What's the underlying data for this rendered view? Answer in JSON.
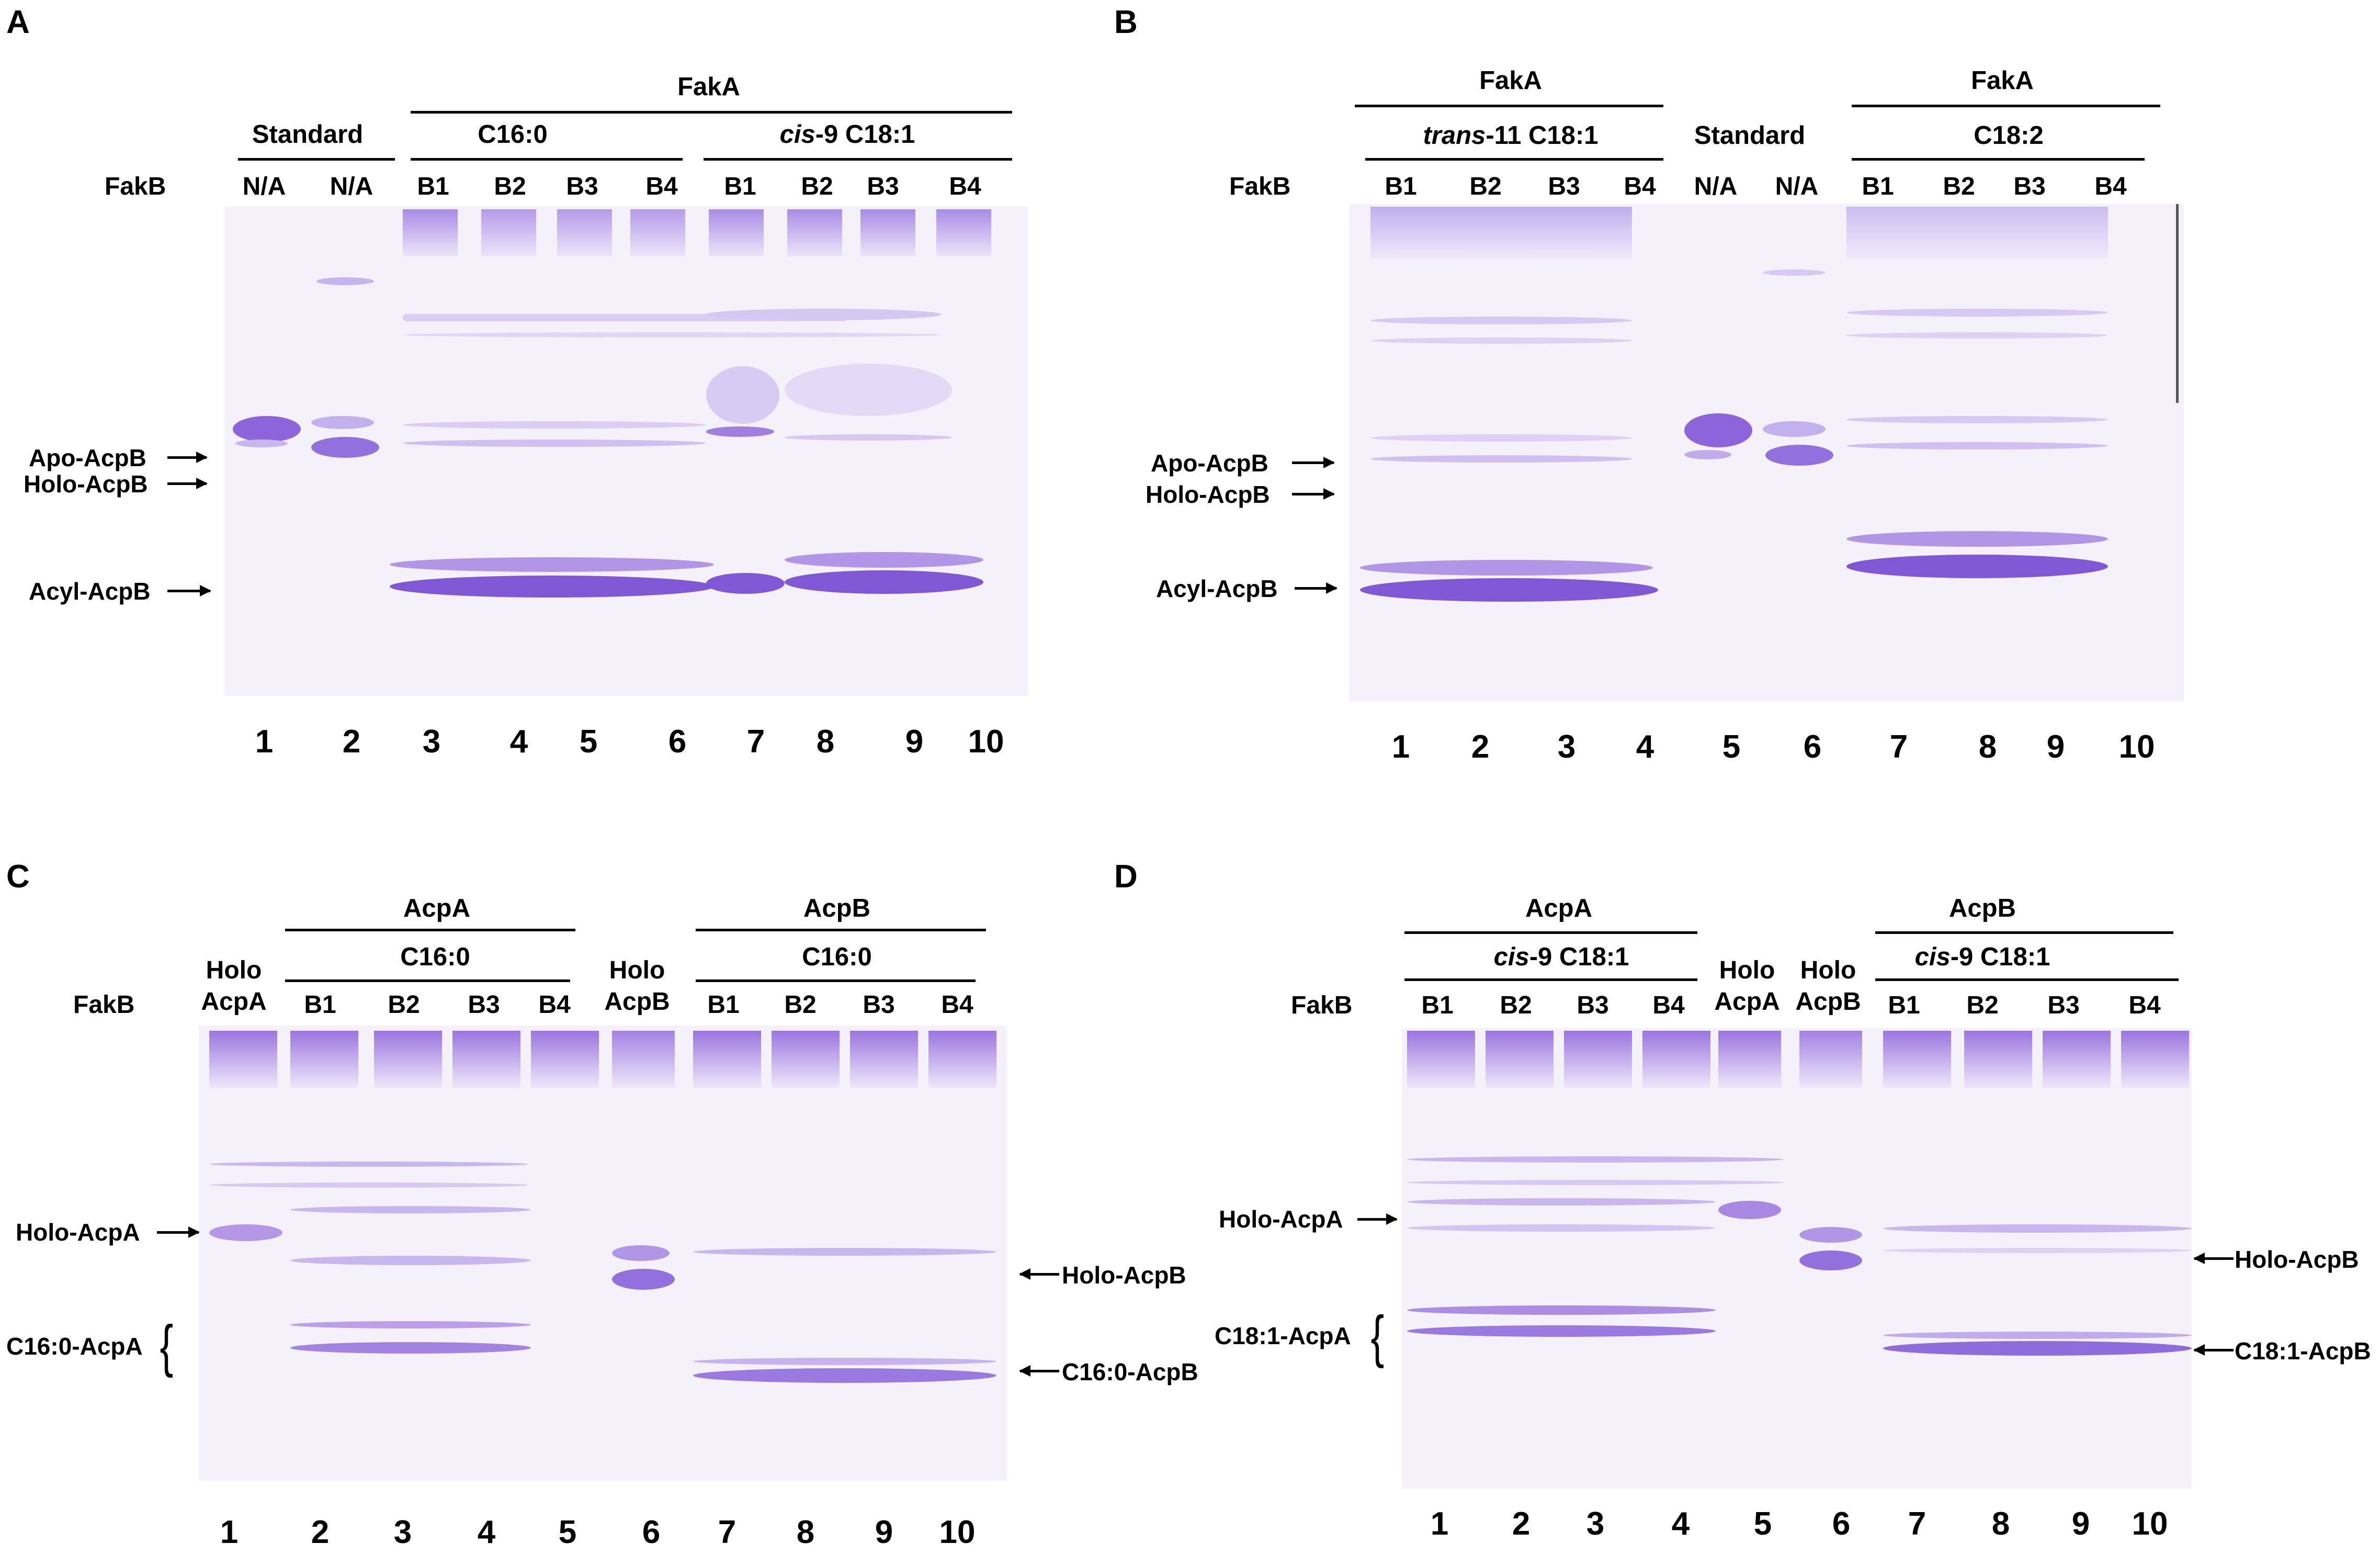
{
  "panels": {
    "A": {
      "letter": "A",
      "row_label": "FakB",
      "group_top": "FakA",
      "group_standard": "Standard",
      "group_c16": "C16:0",
      "group_cis": "cis-9 C18:1",
      "lane_headers": [
        "N/A",
        "N/A",
        "B1",
        "B2",
        "B3",
        "B4",
        "B1",
        "B2",
        "B3",
        "B4"
      ],
      "lane_numbers": [
        "1",
        "2",
        "3",
        "4",
        "5",
        "6",
        "7",
        "8",
        "9",
        "10"
      ],
      "bands": [
        "Apo-AcpB",
        "Holo-AcpB",
        "Acyl-AcpB"
      ]
    },
    "B": {
      "letter": "B",
      "row_label": "FakB",
      "group_top_left": "FakA",
      "group_top_right": "FakA",
      "group_trans": "trans-11 C18:1",
      "group_standard": "Standard",
      "group_c182": "C18:2",
      "lane_headers": [
        "B1",
        "B2",
        "B3",
        "B4",
        "N/A",
        "N/A",
        "B1",
        "B2",
        "B3",
        "B4"
      ],
      "lane_numbers": [
        "1",
        "2",
        "3",
        "4",
        "5",
        "6",
        "7",
        "8",
        "9",
        "10"
      ],
      "bands": [
        "Apo-AcpB",
        "Holo-AcpB",
        "Acyl-AcpB"
      ]
    },
    "C": {
      "letter": "C",
      "row_label": "FakB",
      "group_acpa": "AcpA",
      "group_acpb": "AcpB",
      "group_c16_left": "C16:0",
      "group_c16_right": "C16:0",
      "holo_acpa": "Holo\nAcpA",
      "holo_acpb": "Holo\nAcpB",
      "lane_headers": [
        "B1",
        "B2",
        "B3",
        "B4",
        "B1",
        "B2",
        "B3",
        "B4"
      ],
      "lane_numbers": [
        "1",
        "2",
        "3",
        "4",
        "5",
        "6",
        "7",
        "8",
        "9",
        "10"
      ],
      "bands": [
        "Holo-AcpA",
        "C16:0-AcpA",
        "Holo-AcpB",
        "C16:0-AcpB"
      ]
    },
    "D": {
      "letter": "D",
      "row_label": "FakB",
      "group_acpa": "AcpA",
      "group_acpb": "AcpB",
      "group_cis_left": "cis-9 C18:1",
      "group_cis_right": "cis-9 C18:1",
      "holo_acpa": "Holo\nAcpA",
      "holo_acpb": "Holo\nAcpB",
      "lane_headers": [
        "B1",
        "B2",
        "B3",
        "B4",
        "B1",
        "B2",
        "B3",
        "B4"
      ],
      "lane_numbers": [
        "1",
        "2",
        "3",
        "4",
        "5",
        "6",
        "7",
        "8",
        "9",
        "10"
      ],
      "bands": [
        "Holo-AcpA",
        "C18:1-AcpA",
        "Holo-AcpB",
        "C18:1-AcpB"
      ]
    }
  },
  "colors": {
    "gel_background": "#f4f1fb",
    "band_strong": "#8a5fd9",
    "band_faint": "#cdbdf0",
    "text": "#000000"
  }
}
